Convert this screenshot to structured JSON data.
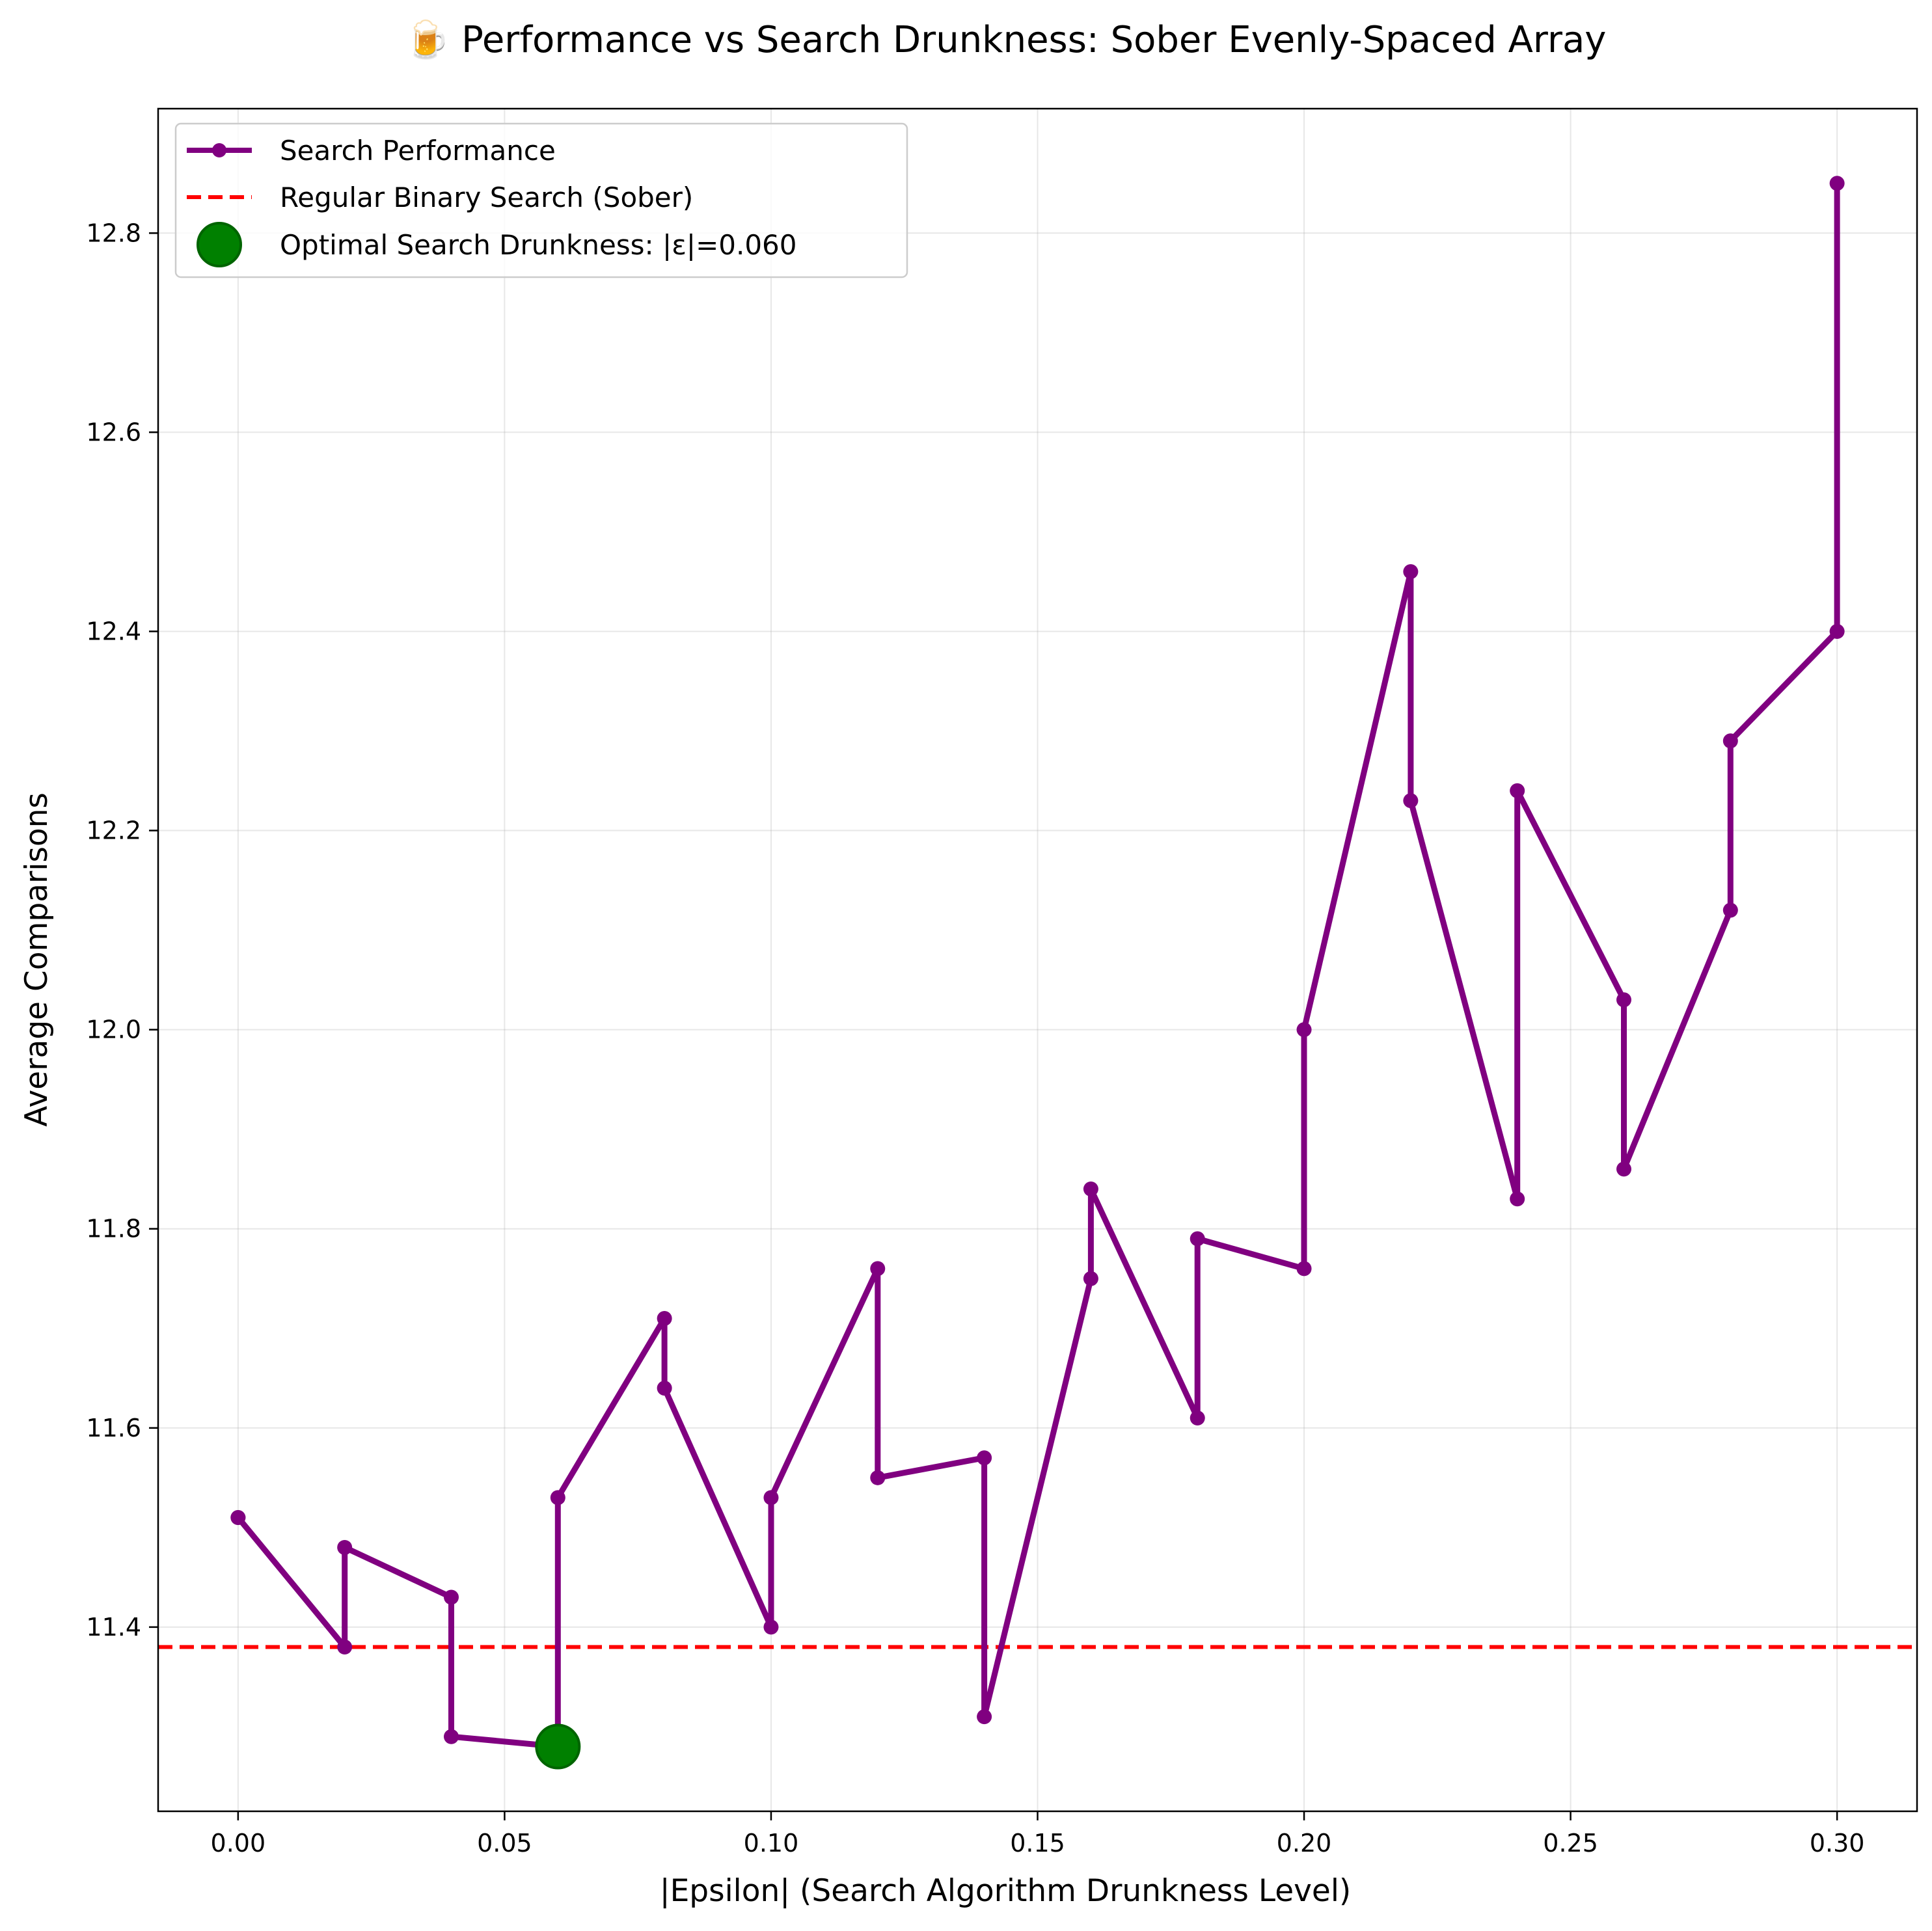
{
  "chart_data": {
    "type": "line",
    "title": "🍺 Performance vs Search Drunkness: Sober Evenly-Spaced Array",
    "xlabel": "|Epsilon| (Search Algorithm Drunkness Level)",
    "ylabel": "Average Comparisons",
    "xlim": [
      -0.015,
      0.315
    ],
    "ylim": [
      11.215,
      12.925
    ],
    "x_ticks": [
      "0.00",
      "0.05",
      "0.10",
      "0.15",
      "0.20",
      "0.25",
      "0.30"
    ],
    "x_tick_values": [
      0,
      0.05,
      0.1,
      0.15,
      0.2,
      0.25,
      0.3
    ],
    "y_ticks": [
      "11.4",
      "11.6",
      "11.8",
      "12.0",
      "12.2",
      "12.4",
      "12.6",
      "12.8"
    ],
    "y_tick_values": [
      11.4,
      11.6,
      11.8,
      12.0,
      12.2,
      12.4,
      12.6,
      12.8
    ],
    "grid": true,
    "legend_position": "top-left",
    "series": [
      {
        "name": "Search Performance",
        "color": "#800080",
        "points": [
          [
            0.0,
            11.51
          ],
          [
            0.0,
            11.51
          ],
          [
            0.02,
            11.38
          ],
          [
            0.02,
            11.48
          ],
          [
            0.04,
            11.43
          ],
          [
            0.04,
            11.29
          ],
          [
            0.06,
            11.28
          ],
          [
            0.06,
            11.53
          ],
          [
            0.08,
            11.71
          ],
          [
            0.08,
            11.64
          ],
          [
            0.1,
            11.4
          ],
          [
            0.1,
            11.53
          ],
          [
            0.12,
            11.76
          ],
          [
            0.12,
            11.55
          ],
          [
            0.14,
            11.57
          ],
          [
            0.14,
            11.31
          ],
          [
            0.16,
            11.75
          ],
          [
            0.16,
            11.84
          ],
          [
            0.18,
            11.61
          ],
          [
            0.18,
            11.79
          ],
          [
            0.2,
            11.76
          ],
          [
            0.2,
            12.0
          ],
          [
            0.22,
            12.46
          ],
          [
            0.22,
            12.23
          ],
          [
            0.24,
            11.83
          ],
          [
            0.24,
            12.24
          ],
          [
            0.26,
            12.03
          ],
          [
            0.26,
            11.86
          ],
          [
            0.28,
            12.12
          ],
          [
            0.28,
            12.29
          ],
          [
            0.3,
            12.4
          ],
          [
            0.3,
            12.85
          ]
        ]
      },
      {
        "name": "Regular Binary Search (Sober)",
        "color": "#ff0000",
        "y": 11.38
      },
      {
        "name": "Optimal Search Drunkness: |ε|=0.060",
        "color": "#008000",
        "x": 0.06,
        "y": 11.28
      }
    ]
  }
}
